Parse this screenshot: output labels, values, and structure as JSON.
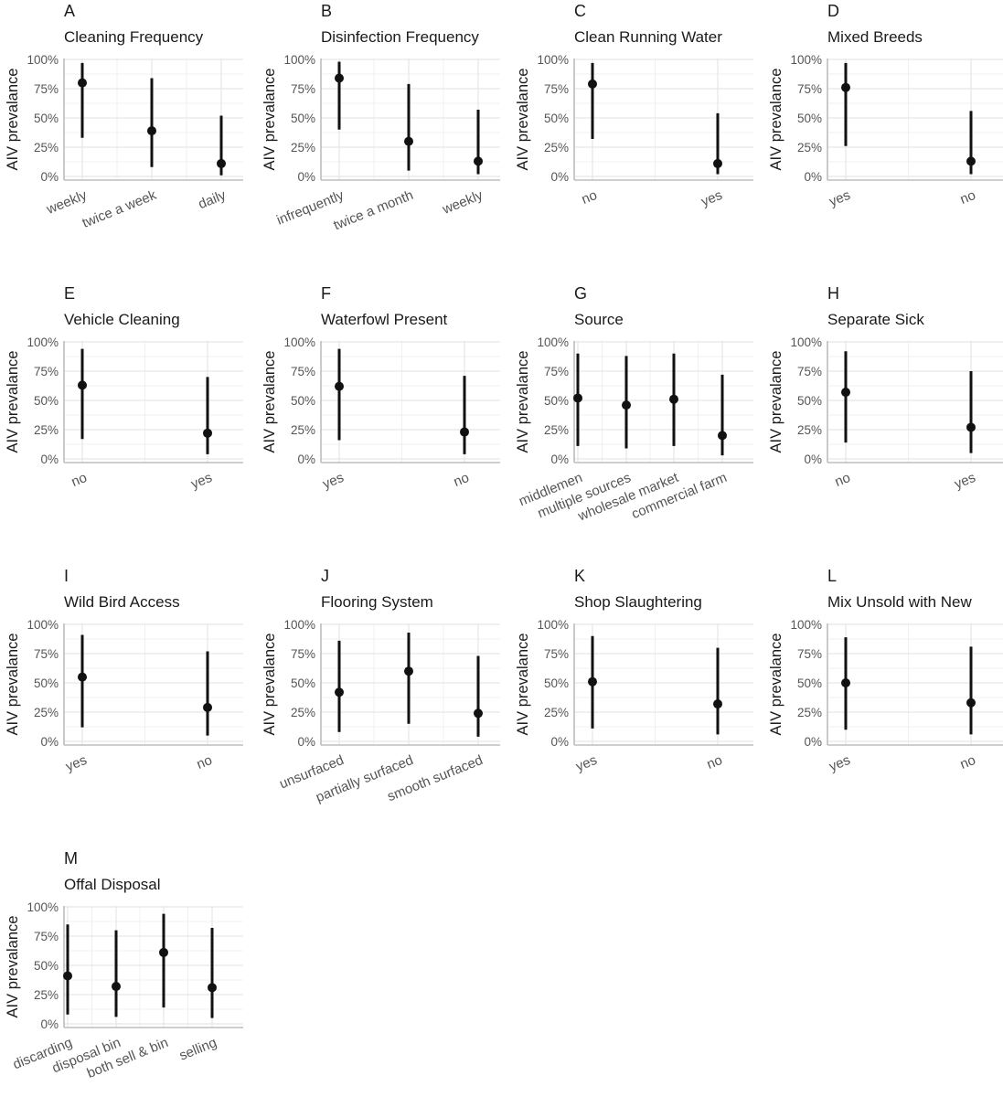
{
  "figure": {
    "ylabel": "AIV prevalance",
    "yticks": [
      0,
      25,
      50,
      75,
      100
    ],
    "ytick_labels": [
      "0%",
      "25%",
      "50%",
      "75%",
      "100%"
    ],
    "colors": {
      "grid": "#e6e6e6",
      "axis": "#bdbdbd",
      "text": "#1a1a1a",
      "tick": "#555555",
      "mark": "#111111"
    }
  },
  "chart_data": [
    {
      "type": "pointrange",
      "tag": "A",
      "title": "Cleaning Frequency",
      "ylim": [
        0,
        100
      ],
      "categories": [
        "weekly",
        "twice a week",
        "daily"
      ],
      "values": [
        80,
        39,
        11
      ],
      "lower": [
        33,
        8,
        1
      ],
      "upper": [
        97,
        84,
        52
      ]
    },
    {
      "type": "pointrange",
      "tag": "B",
      "title": "Disinfection Frequency",
      "ylim": [
        0,
        100
      ],
      "categories": [
        "infrequently",
        "twice a month",
        "weekly"
      ],
      "values": [
        84,
        30,
        13
      ],
      "lower": [
        40,
        5,
        2
      ],
      "upper": [
        98,
        79,
        57
      ]
    },
    {
      "type": "pointrange",
      "tag": "C",
      "title": "Clean Running Water",
      "ylim": [
        0,
        100
      ],
      "categories": [
        "no",
        "yes"
      ],
      "values": [
        79,
        11
      ],
      "lower": [
        32,
        2
      ],
      "upper": [
        97,
        54
      ]
    },
    {
      "type": "pointrange",
      "tag": "D",
      "title": "Mixed Breeds",
      "ylim": [
        0,
        100
      ],
      "categories": [
        "yes",
        "no"
      ],
      "values": [
        76,
        13
      ],
      "lower": [
        26,
        2
      ],
      "upper": [
        97,
        56
      ]
    },
    {
      "type": "pointrange",
      "tag": "E",
      "title": "Vehicle Cleaning",
      "ylim": [
        0,
        100
      ],
      "categories": [
        "no",
        "yes"
      ],
      "values": [
        63,
        22
      ],
      "lower": [
        17,
        4
      ],
      "upper": [
        94,
        70
      ]
    },
    {
      "type": "pointrange",
      "tag": "F",
      "title": "Waterfowl Present",
      "ylim": [
        0,
        100
      ],
      "categories": [
        "yes",
        "no"
      ],
      "values": [
        62,
        23
      ],
      "lower": [
        16,
        4
      ],
      "upper": [
        94,
        71
      ]
    },
    {
      "type": "pointrange",
      "tag": "G",
      "title": "Source",
      "ylim": [
        0,
        100
      ],
      "categories": [
        "middlemen",
        "multiple sources",
        "wholesale market",
        "commercial farm"
      ],
      "values": [
        52,
        46,
        51,
        20
      ],
      "lower": [
        11,
        9,
        11,
        3
      ],
      "upper": [
        90,
        88,
        90,
        72
      ]
    },
    {
      "type": "pointrange",
      "tag": "H",
      "title": "Separate Sick",
      "ylim": [
        0,
        100
      ],
      "categories": [
        "no",
        "yes"
      ],
      "values": [
        57,
        27
      ],
      "lower": [
        14,
        5
      ],
      "upper": [
        92,
        75
      ]
    },
    {
      "type": "pointrange",
      "tag": "I",
      "title": "Wild Bird Access",
      "ylim": [
        0,
        100
      ],
      "categories": [
        "yes",
        "no"
      ],
      "values": [
        55,
        29
      ],
      "lower": [
        12,
        5
      ],
      "upper": [
        91,
        77
      ]
    },
    {
      "type": "pointrange",
      "tag": "J",
      "title": "Flooring System",
      "ylim": [
        0,
        100
      ],
      "categories": [
        "unsurfaced",
        "partially surfaced",
        "smooth surfaced"
      ],
      "values": [
        42,
        60,
        24
      ],
      "lower": [
        8,
        15,
        4
      ],
      "upper": [
        86,
        93,
        73
      ]
    },
    {
      "type": "pointrange",
      "tag": "K",
      "title": "Shop Slaughtering",
      "ylim": [
        0,
        100
      ],
      "categories": [
        "yes",
        "no"
      ],
      "values": [
        51,
        32
      ],
      "lower": [
        11,
        6
      ],
      "upper": [
        90,
        80
      ]
    },
    {
      "type": "pointrange",
      "tag": "L",
      "title": "Mix Unsold with New",
      "ylim": [
        0,
        100
      ],
      "categories": [
        "yes",
        "no"
      ],
      "values": [
        50,
        33
      ],
      "lower": [
        10,
        6
      ],
      "upper": [
        89,
        81
      ]
    },
    {
      "type": "pointrange",
      "tag": "M",
      "title": "Offal Disposal",
      "ylim": [
        0,
        100
      ],
      "categories": [
        "discarding",
        "disposal bin",
        "both sell & bin",
        "selling"
      ],
      "values": [
        41,
        32,
        61,
        31
      ],
      "lower": [
        8,
        6,
        14,
        5
      ],
      "upper": [
        85,
        80,
        94,
        82
      ]
    }
  ]
}
